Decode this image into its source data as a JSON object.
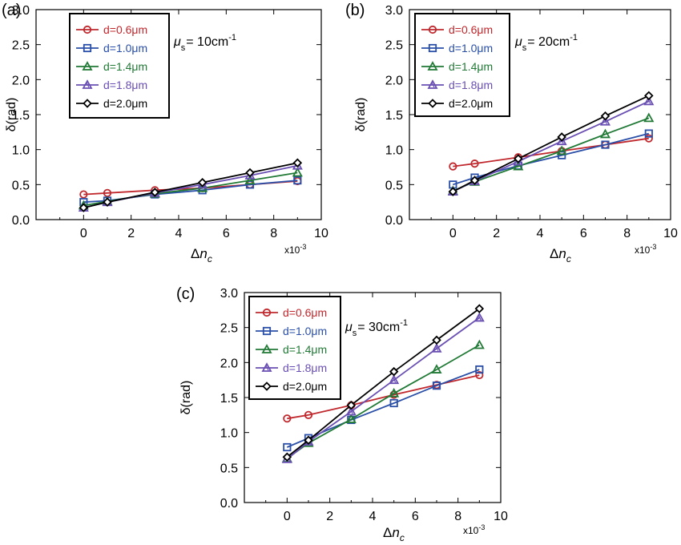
{
  "chart_data": [
    {
      "type": "line",
      "panel_label": "(a)",
      "annotation": {
        "prefix": "μ",
        "sub": "s",
        "text": "= 10cm",
        "sup": "-1"
      },
      "xlabel": {
        "delta": "Δ",
        "var": "n",
        "sub": "c"
      },
      "ylabel": "δ(rad)",
      "x_multiplier": {
        "base": "x10",
        "exp": "-3"
      },
      "xlim": [
        -2,
        10
      ],
      "ylim": [
        0,
        3
      ],
      "x_ticks": [
        "0",
        "2",
        "4",
        "6",
        "8",
        "10"
      ],
      "y_ticks": [
        "0.0",
        "0.5",
        "1.0",
        "1.5",
        "2.0",
        "2.5",
        "3.0"
      ],
      "legend_position": "top-left",
      "x": [
        0,
        1,
        3,
        5,
        7,
        9
      ],
      "series": [
        {
          "name": "d=0.6μm",
          "marker": "circle",
          "color": "#c0282d",
          "values": [
            0.36,
            0.38,
            0.42,
            0.45,
            0.5,
            0.55
          ]
        },
        {
          "name": "d=1.0μm",
          "marker": "square",
          "color": "#2a4fa8",
          "values": [
            0.25,
            0.27,
            0.36,
            0.42,
            0.5,
            0.56
          ]
        },
        {
          "name": "d=1.4μm",
          "marker": "triangle",
          "color": "#217a36",
          "values": [
            0.2,
            0.26,
            0.37,
            0.45,
            0.56,
            0.67
          ]
        },
        {
          "name": "d=1.8μm",
          "marker": "triangle-open",
          "color": "#6a4fb3",
          "values": [
            0.17,
            0.25,
            0.38,
            0.5,
            0.63,
            0.77
          ]
        },
        {
          "name": "d=2.0μm",
          "marker": "diamond",
          "color": "#000000",
          "values": [
            0.17,
            0.25,
            0.39,
            0.53,
            0.67,
            0.81
          ]
        }
      ]
    },
    {
      "type": "line",
      "panel_label": "(b)",
      "annotation": {
        "prefix": "μ",
        "sub": "s",
        "text": "= 20cm",
        "sup": "-1"
      },
      "xlabel": {
        "delta": "Δ",
        "var": "n",
        "sub": "c"
      },
      "ylabel": "δ(rad)",
      "x_multiplier": {
        "base": "x10",
        "exp": "-3"
      },
      "xlim": [
        -2,
        10
      ],
      "ylim": [
        0,
        3
      ],
      "x_ticks": [
        "0",
        "2",
        "4",
        "6",
        "8",
        "10"
      ],
      "y_ticks": [
        "0.0",
        "0.5",
        "1.0",
        "1.5",
        "2.0",
        "2.5",
        "3.0"
      ],
      "legend_position": "top-left",
      "x": [
        0,
        1,
        3,
        5,
        7,
        9
      ],
      "series": [
        {
          "name": "d=0.6μm",
          "marker": "circle",
          "color": "#c0282d",
          "values": [
            0.76,
            0.8,
            0.89,
            0.98,
            1.07,
            1.16
          ]
        },
        {
          "name": "d=1.0μm",
          "marker": "square",
          "color": "#2a4fa8",
          "values": [
            0.5,
            0.6,
            0.77,
            0.92,
            1.07,
            1.23
          ]
        },
        {
          "name": "d=1.4μm",
          "marker": "triangle",
          "color": "#217a36",
          "values": [
            0.41,
            0.54,
            0.76,
            0.98,
            1.22,
            1.45
          ]
        },
        {
          "name": "d=1.8μm",
          "marker": "triangle-open",
          "color": "#6a4fb3",
          "values": [
            0.4,
            0.55,
            0.83,
            1.12,
            1.4,
            1.69
          ]
        },
        {
          "name": "d=2.0μm",
          "marker": "diamond",
          "color": "#000000",
          "values": [
            0.4,
            0.56,
            0.87,
            1.18,
            1.48,
            1.77
          ]
        }
      ]
    },
    {
      "type": "line",
      "panel_label": "(c)",
      "annotation": {
        "prefix": "μ",
        "sub": "s",
        "text": "= 30cm",
        "sup": "-1"
      },
      "xlabel": {
        "delta": "Δ",
        "var": "n",
        "sub": "c"
      },
      "ylabel": "δ(rad)",
      "x_multiplier": {
        "base": "x10",
        "exp": "-3"
      },
      "xlim": [
        -2,
        10
      ],
      "ylim": [
        0,
        3
      ],
      "x_ticks": [
        "0",
        "2",
        "4",
        "6",
        "8",
        "10"
      ],
      "y_ticks": [
        "0.0",
        "0.5",
        "1.0",
        "1.5",
        "2.0",
        "2.5",
        "3.0"
      ],
      "legend_position": "top-left",
      "x": [
        0,
        1,
        3,
        5,
        7,
        9
      ],
      "series": [
        {
          "name": "d=0.6μm",
          "marker": "circle",
          "color": "#c0282d",
          "values": [
            1.2,
            1.25,
            1.39,
            1.54,
            1.68,
            1.82
          ]
        },
        {
          "name": "d=1.0μm",
          "marker": "square",
          "color": "#2a4fa8",
          "values": [
            0.79,
            0.92,
            1.18,
            1.42,
            1.67,
            1.9
          ]
        },
        {
          "name": "d=1.4μm",
          "marker": "triangle",
          "color": "#217a36",
          "values": [
            0.63,
            0.85,
            1.19,
            1.56,
            1.9,
            2.25
          ]
        },
        {
          "name": "d=1.8μm",
          "marker": "triangle-open",
          "color": "#6a4fb3",
          "values": [
            0.62,
            0.87,
            1.3,
            1.75,
            2.2,
            2.64
          ]
        },
        {
          "name": "d=2.0μm",
          "marker": "diamond",
          "color": "#000000",
          "values": [
            0.65,
            0.89,
            1.39,
            1.87,
            2.32,
            2.77
          ]
        }
      ]
    }
  ]
}
